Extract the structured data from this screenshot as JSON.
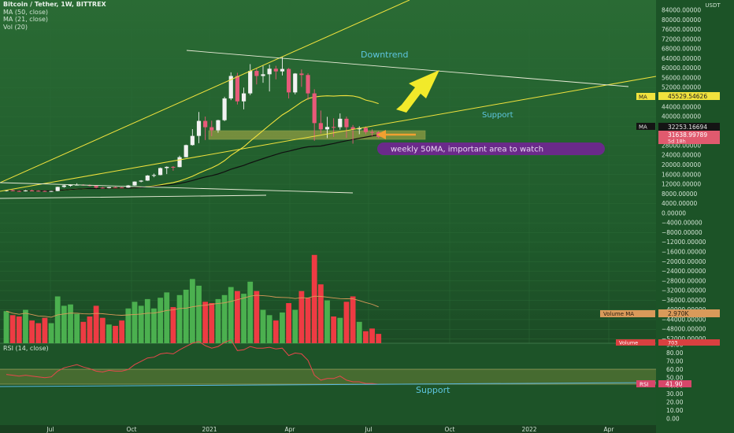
{
  "legend": {
    "symbol": "Bitcoin / Tether, 1W, BITTREX",
    "ma50": "MA (50, close)",
    "ma21": "MA (21, close)",
    "vol": "Vol (20)",
    "rsi": "RSI (14, close)"
  },
  "colors": {
    "up": "#4bb04f",
    "down": "#ee3b43",
    "trendline": "#f1e23d",
    "annotation": "#6b2a8a",
    "ma_tag": "#f1e23d"
  },
  "annotations": {
    "downtrend": "Downtrend",
    "support_top": "Support",
    "callout": "weekly 50MA, important area to watch",
    "support_rsi": "Support"
  },
  "price_axis": {
    "unit": "USDT",
    "ticks": [
      "84000.00000",
      "80000.00000",
      "76000.00000",
      "72000.00000",
      "68000.00000",
      "64000.00000",
      "60000.00000",
      "56000.00000",
      "52000.00000",
      "48000.00000",
      "44000.00000",
      "40000.00000",
      "36000.00000",
      "32000.00000",
      "28000.00000",
      "24000.00000",
      "20000.00000",
      "16000.00000",
      "12000.00000",
      "8000.00000",
      "4000.00000",
      "0.00000",
      "−4000.00000",
      "−8000.00000",
      "−12000.00000",
      "−16000.00000",
      "−20000.00000",
      "−24000.00000",
      "−28000.00000",
      "−32000.00000",
      "−36000.00000",
      "−40000.00000",
      "−44000.00000",
      "−48000.00000",
      "−52000.00000"
    ]
  },
  "tags": {
    "ma_top_label": "MA",
    "ma_top_value": "45529.54626",
    "ma_low_label": "MA",
    "ma_low_value": "32253.16694",
    "price_value": "31638.99789",
    "price_countdown": "5d 18h",
    "volume_ma_label": "Volume MA",
    "volume_ma_value": "2.970K",
    "volume_label": "Volume",
    "volume_value": "703",
    "rsi_label": "RSI",
    "rsi_value": "41.90"
  },
  "rsi_axis": {
    "ticks": [
      "90.00",
      "80.00",
      "70.00",
      "60.00",
      "50.00",
      "40.00",
      "30.00",
      "20.00",
      "10.00",
      "0.00"
    ]
  },
  "time_axis": {
    "labels": [
      "Jul",
      "Oct",
      "2021",
      "Apr",
      "Jul",
      "Oct",
      "2022",
      "Apr"
    ]
  },
  "chart_data": [
    {
      "type": "candlestick",
      "title": "Bitcoin / Tether, 1W, BITTREX",
      "ylabel": "USDT",
      "ylim": [
        -52000,
        84000
      ],
      "series": [
        {
          "name": "Price",
          "ohlc": [
            [
              9300,
              9700,
              9000,
              9500
            ],
            [
              9500,
              9800,
              9100,
              9200
            ],
            [
              9200,
              9400,
              8900,
              9100
            ],
            [
              9100,
              9600,
              9000,
              9400
            ],
            [
              9400,
              9800,
              9200,
              9300
            ],
            [
              9300,
              9500,
              9000,
              9200
            ],
            [
              9200,
              9400,
              8900,
              9100
            ],
            [
              9100,
              9300,
              8800,
              9200
            ],
            [
              9200,
              11000,
              9100,
              10900
            ],
            [
              10900,
              11800,
              10600,
              11500
            ],
            [
              11500,
              12000,
              11000,
              11700
            ],
            [
              11700,
              12400,
              11500,
              11800
            ],
            [
              11800,
              12000,
              11400,
              11700
            ],
            [
              11700,
              11900,
              11100,
              11300
            ],
            [
              11300,
              11400,
              10300,
              10600
            ],
            [
              10600,
              10900,
              10200,
              10400
            ],
            [
              10400,
              10900,
              10300,
              10800
            ],
            [
              10800,
              11000,
              10500,
              10700
            ],
            [
              10700,
              10900,
              10500,
              10600
            ],
            [
              10600,
              11700,
              10500,
              11500
            ],
            [
              11500,
              13200,
              11400,
              13100
            ],
            [
              13100,
              13700,
              12800,
              13500
            ],
            [
              13500,
              15800,
              13400,
              15600
            ],
            [
              15600,
              16400,
              14900,
              15800
            ],
            [
              15800,
              18900,
              15700,
              18700
            ],
            [
              18700,
              19400,
              16200,
              19200
            ],
            [
              19200,
              19500,
              17600,
              19100
            ],
            [
              19100,
              23800,
              19000,
              23200
            ],
            [
              23200,
              28400,
              23100,
              28200
            ],
            [
              28200,
              34800,
              28000,
              32000
            ],
            [
              32000,
              41900,
              29000,
              38200
            ],
            [
              38200,
              40000,
              30300,
              35600
            ],
            [
              35600,
              38300,
              31900,
              34300
            ],
            [
              34300,
              38700,
              33300,
              38500
            ],
            [
              38500,
              48200,
              38100,
              47500
            ],
            [
              47500,
              58300,
              46800,
              56800
            ],
            [
              56800,
              58100,
              45000,
              46300
            ],
            [
              46300,
              52000,
              43000,
              49600
            ],
            [
              49600,
              61700,
              48900,
              58900
            ],
            [
              58900,
              60200,
              53300,
              56800
            ],
            [
              56800,
              61000,
              54000,
              57500
            ],
            [
              57500,
              61500,
              50400,
              59800
            ],
            [
              59800,
              61000,
              55400,
              58700
            ],
            [
              58700,
              64800,
              57000,
              59700
            ],
            [
              59700,
              60100,
              47500,
              50000
            ],
            [
              50000,
              58000,
              49200,
              57800
            ],
            [
              57800,
              59500,
              52300,
              57200
            ],
            [
              57200,
              57900,
              46900,
              49600
            ],
            [
              49600,
              51300,
              30000,
              37300
            ],
            [
              37300,
              42500,
              33000,
              34700
            ],
            [
              34700,
              39900,
              31100,
              35700
            ],
            [
              35700,
              39300,
              31600,
              35600
            ],
            [
              35600,
              41300,
              34600,
              39100
            ],
            [
              39100,
              40000,
              31200,
              35600
            ],
            [
              35600,
              36500,
              28800,
              34700
            ],
            [
              34700,
              36000,
              32700,
              35300
            ],
            [
              35300,
              35900,
              32700,
              33600
            ],
            [
              33600,
              34700,
              32000,
              33500
            ],
            [
              33500,
              34000,
              31100,
              31600
            ]
          ]
        },
        {
          "name": "MA (50, close)",
          "values": [
            32253.16694
          ]
        },
        {
          "name": "MA (21, close)",
          "values": [
            45529.54626
          ]
        }
      ]
    },
    {
      "type": "bar",
      "title": "Vol (20)",
      "series": [
        {
          "name": "Volume",
          "values": [
            2.4,
            2.1,
            2.0,
            2.5,
            1.7,
            1.5,
            1.9,
            1.5,
            3.5,
            2.8,
            2.9,
            2.2,
            1.6,
            2.0,
            2.8,
            1.9,
            1.4,
            1.3,
            1.7,
            2.6,
            3.1,
            2.8,
            3.3,
            2.6,
            3.4,
            3.8,
            2.7,
            3.6,
            4.0,
            4.8,
            4.3,
            3.1,
            3.0,
            3.3,
            3.6,
            4.2,
            3.9,
            3.7,
            4.6,
            3.9,
            2.5,
            2.1,
            1.7,
            2.3,
            3.0,
            2.5,
            3.9,
            3.4,
            6.6,
            4.4,
            3.2,
            2.0,
            1.9,
            3.1,
            3.5,
            1.6,
            0.9,
            1.1,
            0.7
          ]
        },
        {
          "name": "Volume MA",
          "values": [
            2.97
          ]
        }
      ]
    },
    {
      "type": "line",
      "title": "RSI (14, close)",
      "ylim": [
        0,
        90
      ],
      "series": [
        {
          "name": "RSI",
          "values": [
            54,
            53,
            52,
            53,
            52,
            51,
            50,
            51,
            58,
            62,
            64,
            66,
            63,
            61,
            58,
            57,
            59,
            58,
            58,
            60,
            66,
            70,
            74,
            75,
            79,
            80,
            79,
            84,
            88,
            92,
            94,
            89,
            86,
            88,
            93,
            96,
            83,
            84,
            88,
            86,
            86,
            87,
            85,
            86,
            77,
            80,
            79,
            71,
            53,
            47,
            49,
            49,
            52,
            47,
            45,
            45,
            43,
            43,
            42
          ]
        },
        {
          "name": "RSI overbought",
          "values": [
            70
          ]
        },
        {
          "name": "RSI oversold",
          "values": [
            50
          ]
        }
      ]
    }
  ]
}
